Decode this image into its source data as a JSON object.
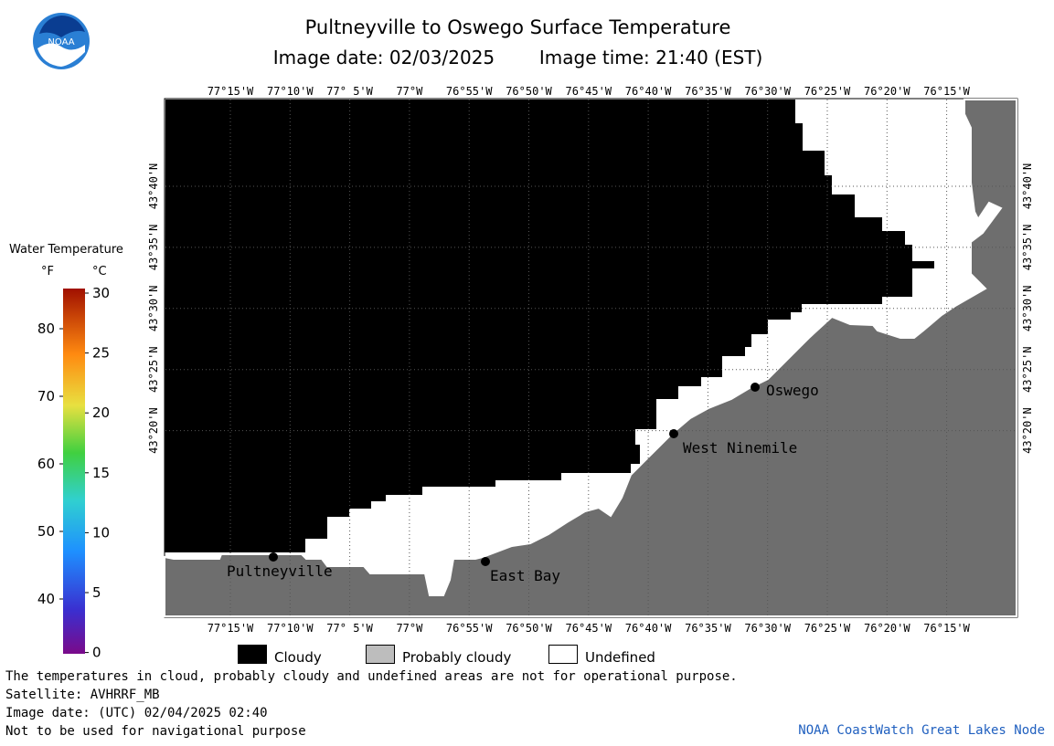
{
  "header": {
    "title": "Pultneyville to Oswego Surface Temperature",
    "image_date_label": "Image date: 02/03/2025",
    "image_time_label": "Image time: 21:40 (EST)",
    "logo_text": "NOAA"
  },
  "legend": {
    "title": "Water Temperature",
    "unit_f": "°F",
    "unit_c": "°C",
    "f_ticks": [
      "80",
      "70",
      "60",
      "50",
      "40"
    ],
    "c_ticks": [
      "30",
      "25",
      "20",
      "15",
      "10",
      "5",
      "0"
    ]
  },
  "map": {
    "lon_labels": [
      "77°15'W",
      "77°10'W",
      "77° 5'W",
      "77°W",
      "76°55'W",
      "76°50'W",
      "76°45'W",
      "76°40'W",
      "76°35'W",
      "76°30'W",
      "76°25'W",
      "76°20'W",
      "76°15'W"
    ],
    "lat_labels": [
      "43°40'N",
      "43°35'N",
      "43°30'N",
      "43°25'N",
      "43°20'N"
    ],
    "places": [
      "Pultneyville",
      "East Bay",
      "West Ninemile",
      "Oswego"
    ],
    "colors": {
      "cloudy": "#000000",
      "land": "#6e6e6e",
      "undefined": "#ffffff"
    }
  },
  "key": {
    "cloudy": "Cloudy",
    "probably_cloudy": "Probably cloudy",
    "undefined": "Undefined"
  },
  "footer": {
    "note": "The temperatures in cloud, probably cloudy and undefined areas are not for operational purpose.",
    "satellite": "Satellite: AVHRRF_MB",
    "utc_date": "Image date: (UTC) 02/04/2025  02:40",
    "nav_warning": "Not to be used for navigational purpose",
    "credit": "NOAA CoastWatch Great Lakes Node"
  }
}
